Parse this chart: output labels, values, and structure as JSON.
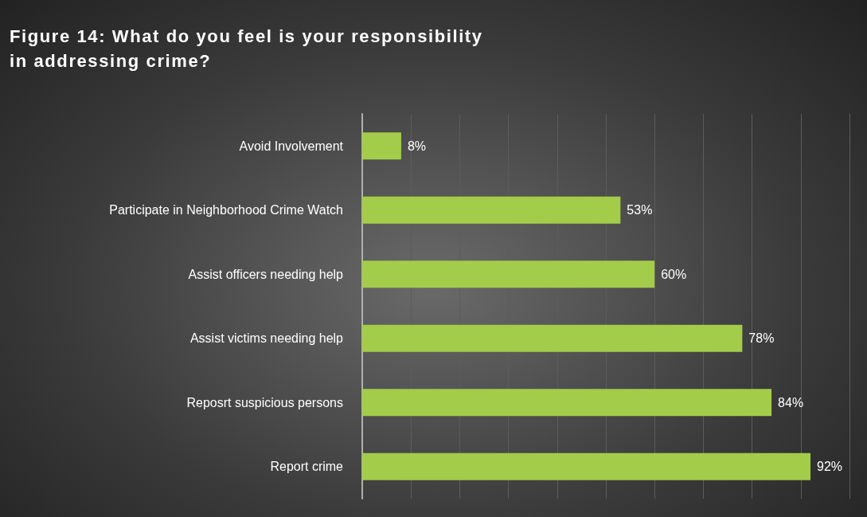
{
  "chart_data": {
    "type": "bar",
    "orientation": "horizontal",
    "title": "Figure 14: What do you feel is your responsibility in addressing crime?",
    "categories": [
      "Avoid Involvement",
      "Participate in Neighborhood Crime Watch",
      "Assist officers needing help",
      "Assist victims needing help",
      "Reposrt suspicious persons",
      "Report crime"
    ],
    "values": [
      8,
      53,
      60,
      78,
      84,
      92
    ],
    "value_labels": [
      "8%",
      "53%",
      "60%",
      "78%",
      "84%",
      "92%"
    ],
    "color": "#a3cc4a",
    "xlim": [
      0,
      100
    ],
    "xticks": [
      {
        "value": 0,
        "label": null
      },
      {
        "value": 10,
        "label": null
      },
      {
        "value": 20,
        "label": null
      },
      {
        "value": 30,
        "label": null
      },
      {
        "value": 40,
        "label": null
      },
      {
        "value": 50,
        "label": null
      },
      {
        "value": 60,
        "label": null
      },
      {
        "value": 70,
        "label": null
      },
      {
        "value": 80,
        "label": null
      },
      {
        "value": 90,
        "label": null
      },
      {
        "value": 100,
        "label": null
      }
    ],
    "grid": "x",
    "tick_labels": "y"
  }
}
